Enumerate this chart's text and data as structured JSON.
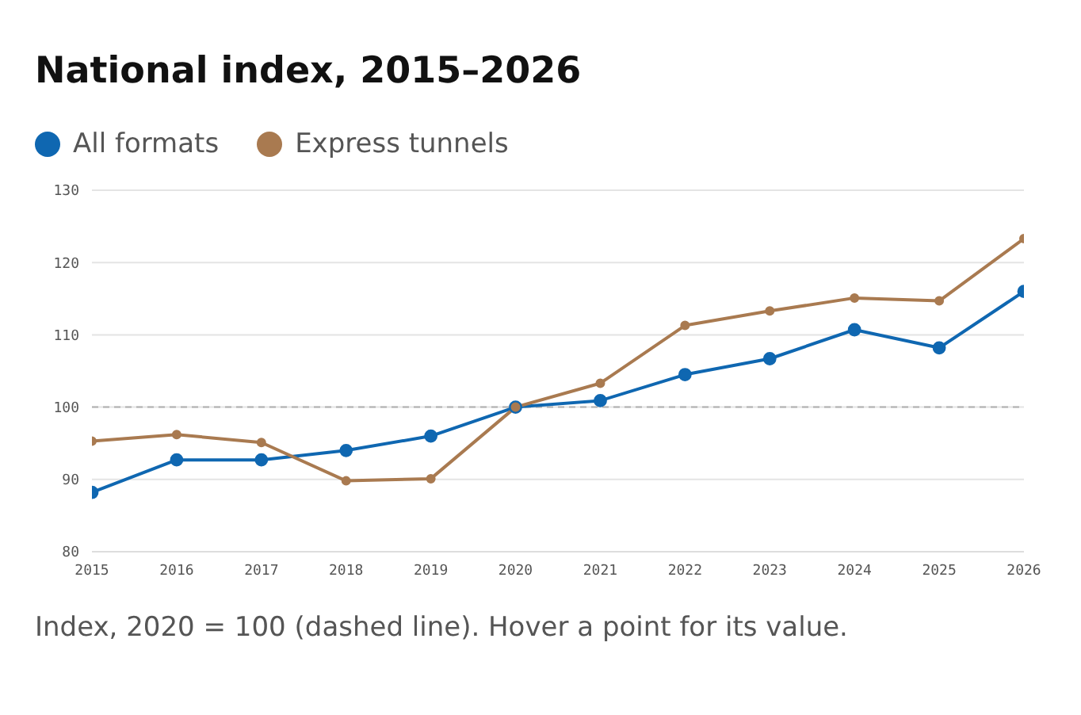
{
  "chart_data": {
    "type": "line",
    "title": "National index, 2015–2026",
    "annotations": [
      "Index, 2020 = 100 (dashed line). Hover a point for its value."
    ],
    "x": [
      2015,
      2016,
      2017,
      2018,
      2019,
      2020,
      2021,
      2022,
      2023,
      2024,
      2025,
      2026
    ],
    "xlim": [
      2015,
      2026
    ],
    "xticks": [
      2015,
      2016,
      2017,
      2018,
      2019,
      2020,
      2021,
      2022,
      2023,
      2024,
      2025,
      2026
    ],
    "ylim": [
      80,
      130
    ],
    "yticks": [
      80,
      90,
      100,
      110,
      120,
      130
    ],
    "grid": "y",
    "legend": "top left",
    "marker": "circle",
    "line_style": "solid",
    "ref_lines": [
      {
        "axis": "y",
        "value": 100,
        "color": "#b0b0b0",
        "line_style": "dashed"
      }
    ],
    "series": [
      {
        "name": "All formats",
        "color": "#0f67b1",
        "values": [
          88.2,
          92.7,
          92.7,
          94,
          96,
          100,
          100.9,
          104.5,
          106.7,
          110.7,
          108.2,
          116
        ]
      },
      {
        "name": "Express tunnels",
        "color": "#a97a50",
        "values": [
          95.3,
          96.2,
          95.1,
          89.8,
          90.1,
          100,
          103.3,
          111.3,
          113.3,
          115.1,
          114.7,
          123.3
        ]
      }
    ]
  }
}
